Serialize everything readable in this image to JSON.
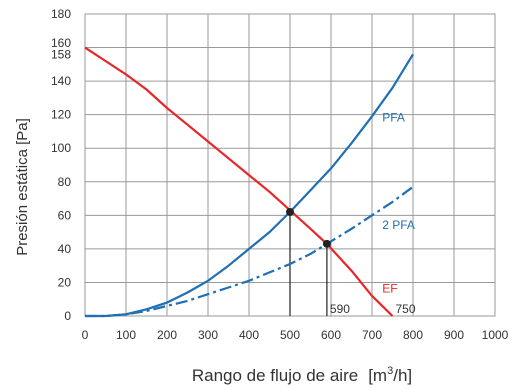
{
  "chart_data": {
    "type": "line",
    "title": "",
    "xlabel": "Rango de flujo de aire",
    "xlabel_unit_base": "[m",
    "xlabel_unit_sup": "3",
    "xlabel_unit_tail": "/h]",
    "ylabel": "Presión estática [Pa]",
    "xlim": [
      0,
      1000
    ],
    "ylim": [
      0,
      180
    ],
    "xticks": [
      0,
      100,
      200,
      300,
      400,
      500,
      600,
      700,
      800,
      900,
      1000
    ],
    "yticks": [
      0,
      20,
      40,
      60,
      80,
      100,
      120,
      140,
      158,
      160,
      180
    ],
    "grid": true,
    "legend": "none",
    "series": [
      {
        "name": "EF",
        "color": "#e8262a",
        "style": "solid",
        "x": [
          0,
          50,
          100,
          150,
          200,
          250,
          300,
          350,
          400,
          450,
          500,
          550,
          590,
          650,
          700,
          750
        ],
        "y": [
          160,
          152,
          144,
          135,
          124,
          114,
          104,
          94,
          84,
          74,
          63,
          52,
          43,
          27,
          12,
          0
        ]
      },
      {
        "name": "PFA",
        "color": "#1f6fb4",
        "style": "solid",
        "x": [
          0,
          50,
          100,
          150,
          200,
          250,
          300,
          350,
          400,
          450,
          500,
          550,
          600,
          650,
          700,
          750,
          800
        ],
        "y": [
          0,
          0,
          1,
          4,
          8,
          14,
          21,
          30,
          40,
          50,
          62,
          75,
          88,
          103,
          119,
          136,
          156
        ]
      },
      {
        "name": "2 PFA",
        "color": "#1f6fb4",
        "style": "dashdot",
        "x": [
          0,
          50,
          100,
          150,
          200,
          250,
          300,
          350,
          400,
          450,
          500,
          550,
          590,
          650,
          700,
          750,
          800
        ],
        "y": [
          0,
          0,
          1,
          3,
          6,
          9,
          13,
          17,
          21,
          26,
          31,
          37,
          43,
          52,
          60,
          68,
          77
        ]
      }
    ],
    "points": [
      {
        "x": 500,
        "y": 62
      },
      {
        "x": 590,
        "y": 43
      }
    ],
    "markers": [
      {
        "x": 500,
        "label": ""
      },
      {
        "x": 590,
        "label": "590"
      },
      {
        "x": 750,
        "label": "750"
      }
    ]
  }
}
